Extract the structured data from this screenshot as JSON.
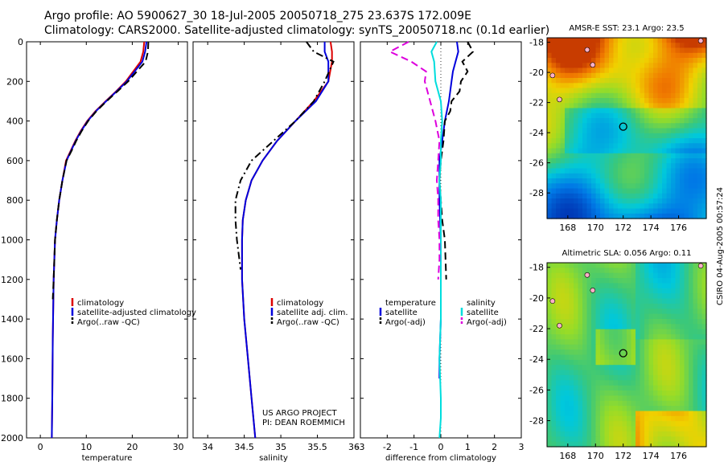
{
  "header": {
    "line1": "Argo profile: AO 5900627_30 18-Jul-2005 20050718_275 23.637S 172.009E",
    "line2": "Climatology: CARS2000. Satellite-adjusted climatology: synTS_20050718.nc (0.1d earlier)"
  },
  "side_label": "CSIRO 04-Aug-2005 00:57:24",
  "colors": {
    "red": "#dd0000",
    "blue": "#0000dd",
    "black": "#000000",
    "cyan": "#00dddd",
    "magenta": "#dd00dd"
  },
  "chart_data": [
    {
      "type": "line",
      "xlabel": "temperature",
      "xlim": [
        -3,
        32
      ],
      "xticks": [
        0,
        10,
        20,
        30
      ],
      "ylim": [
        2000,
        0
      ],
      "yticks": [
        0,
        200,
        400,
        600,
        800,
        1000,
        1200,
        1400,
        1600,
        1800,
        2000
      ],
      "legend": [
        "climatology",
        "satellite-adjusted climatology",
        "Argo(..raw -QC)"
      ],
      "annotation": [],
      "series": [
        {
          "name": "climatology",
          "color": "red",
          "style": "solid",
          "x": [
            22.6,
            22.4,
            21.8,
            20.2,
            18.6,
            16.5,
            14.2,
            12.0,
            10.2,
            8.8,
            7.6,
            6.6,
            5.6,
            4.8,
            4.1,
            3.6,
            3.2,
            2.9,
            2.7,
            2.6,
            2.5
          ],
          "y": [
            0,
            50,
            100,
            150,
            200,
            250,
            300,
            350,
            400,
            450,
            500,
            550,
            600,
            700,
            800,
            900,
            1000,
            1200,
            1500,
            1800,
            2000
          ]
        },
        {
          "name": "satellite-adjusted climatology",
          "color": "blue",
          "style": "solid",
          "x": [
            23.1,
            22.8,
            22.2,
            20.5,
            18.8,
            16.6,
            14.3,
            12.1,
            10.3,
            8.9,
            7.7,
            6.7,
            5.7,
            4.8,
            4.1,
            3.6,
            3.2,
            2.9,
            2.7,
            2.6,
            2.5
          ],
          "y": [
            0,
            50,
            100,
            150,
            200,
            250,
            300,
            350,
            400,
            450,
            500,
            550,
            600,
            700,
            800,
            900,
            1000,
            1200,
            1500,
            1800,
            2000
          ]
        },
        {
          "name": "Argo(..raw -QC)",
          "color": "black",
          "style": "dash",
          "x": [
            23.5,
            23.4,
            22.9,
            21.0,
            19.1,
            16.8,
            14.4,
            12.2,
            10.4,
            9.0,
            7.8,
            6.8,
            5.7,
            4.8,
            4.1,
            3.6,
            3.2,
            2.9,
            2.7
          ],
          "y": [
            0,
            50,
            100,
            150,
            200,
            250,
            300,
            350,
            400,
            450,
            500,
            550,
            600,
            700,
            800,
            900,
            1000,
            1200,
            1300
          ]
        }
      ]
    },
    {
      "type": "line",
      "xlabel": "salinity",
      "xlim": [
        33.8,
        36.0
      ],
      "xticks": [
        34,
        34.5,
        35,
        35.5,
        36
      ],
      "ylim": [
        2000,
        0
      ],
      "yticks": [
        0,
        200,
        400,
        600,
        800,
        1000,
        1200,
        1400,
        1600,
        1800,
        2000
      ],
      "legend": [
        "climatology",
        "satellite adj. clim.",
        "Argo(..raw -QC)"
      ],
      "annotation": [
        "US ARGO PROJECT",
        "PI: DEAN ROEMMICH"
      ],
      "series": [
        {
          "name": "climatology",
          "color": "red",
          "style": "solid",
          "x": [
            35.68,
            35.7,
            35.7,
            35.65,
            35.45,
            35.2,
            34.95,
            34.75,
            34.6,
            34.52,
            34.48,
            34.47,
            34.47,
            34.5,
            34.55,
            34.6,
            34.65
          ],
          "y": [
            0,
            50,
            100,
            200,
            300,
            400,
            500,
            600,
            700,
            800,
            900,
            1000,
            1200,
            1400,
            1600,
            1800,
            2000
          ]
        },
        {
          "name": "satellite adj. clim.",
          "color": "blue",
          "style": "solid",
          "x": [
            35.6,
            35.6,
            35.65,
            35.65,
            35.48,
            35.2,
            34.95,
            34.75,
            34.6,
            34.52,
            34.48,
            34.47,
            34.47,
            34.5,
            34.55,
            34.6,
            34.65
          ],
          "y": [
            0,
            50,
            100,
            200,
            300,
            400,
            500,
            600,
            700,
            800,
            900,
            1000,
            1200,
            1400,
            1600,
            1800,
            2000
          ]
        },
        {
          "name": "Argo(..raw -QC)",
          "color": "black",
          "style": "dashdot",
          "x": [
            35.35,
            35.45,
            35.72,
            35.6,
            35.45,
            35.2,
            34.9,
            34.6,
            34.45,
            34.38,
            34.38,
            34.4,
            34.45
          ],
          "y": [
            0,
            50,
            100,
            200,
            300,
            400,
            500,
            600,
            700,
            800,
            900,
            1000,
            1150
          ]
        }
      ]
    },
    {
      "type": "line",
      "xlabel": "difference from climatology",
      "xlim": [
        -3,
        3
      ],
      "xticks": [
        -3,
        -2,
        -1,
        0,
        1,
        2,
        3
      ],
      "ylim": [
        2000,
        0
      ],
      "yticks": [
        0,
        200,
        400,
        600,
        800,
        1000,
        1200,
        1400,
        1600,
        1800,
        2000
      ],
      "legend_left": [
        "temperature",
        "satellite",
        "Argo(-adj)"
      ],
      "legend_right": [
        "salinity",
        "satellite",
        "Argo(-adj)"
      ],
      "annotation": [],
      "series": [
        {
          "name": "satellite",
          "color": "blue",
          "style": "solid",
          "x": [
            0.6,
            0.65,
            0.55,
            0.45,
            0.4,
            0.3,
            0.15,
            0.05,
            -0.05,
            -0.05,
            -0.05,
            0.0,
            0.0,
            0.0,
            -0.05,
            -0.05
          ],
          "y": [
            0,
            50,
            100,
            150,
            200,
            300,
            400,
            500,
            600,
            700,
            800,
            1000,
            1200,
            1400,
            1600,
            1700
          ]
        },
        {
          "name": "Argo(-adj)",
          "color": "black",
          "style": "dash",
          "x": [
            1.0,
            1.2,
            0.8,
            1.0,
            0.75,
            0.7,
            0.4,
            0.35,
            0.15,
            0.1,
            0.0,
            -0.05,
            0.0,
            0.05,
            0.15,
            0.2
          ],
          "y": [
            0,
            50,
            100,
            150,
            200,
            250,
            300,
            350,
            400,
            500,
            600,
            700,
            800,
            900,
            1000,
            1200
          ]
        },
        {
          "name": "salinity satellite",
          "color": "cyan",
          "style": "solid",
          "x": [
            -0.15,
            -0.35,
            -0.25,
            -0.2,
            0.0,
            0.05,
            0.0,
            0.0,
            -0.05,
            0.0,
            0.0,
            0.0,
            0.0,
            0.0,
            -0.05,
            0.0,
            0.0,
            -0.05
          ],
          "y": [
            0,
            50,
            100,
            200,
            300,
            400,
            500,
            600,
            700,
            800,
            900,
            1000,
            1200,
            1400,
            1600,
            1800,
            1900,
            2000
          ]
        },
        {
          "name": "salinity Argo(-adj)",
          "color": "magenta",
          "style": "dash",
          "x": [
            -1.2,
            -1.9,
            -1.1,
            -0.55,
            -0.6,
            -0.4,
            -0.2,
            -0.05,
            -0.1,
            -0.15,
            -0.1,
            -0.1,
            -0.05,
            -0.05,
            -0.1
          ],
          "y": [
            0,
            50,
            100,
            150,
            200,
            300,
            400,
            500,
            600,
            700,
            800,
            900,
            1000,
            1100,
            1200
          ]
        }
      ]
    },
    {
      "type": "heatmap",
      "title": "AMSR-E SST: 23.1 Argo: 23.5",
      "xlim": [
        166.5,
        178
      ],
      "xticks": [
        168,
        170,
        172,
        174,
        176
      ],
      "ylim": [
        -29.7,
        -17.7
      ],
      "yticks": [
        -18,
        -20,
        -22,
        -24,
        -26,
        -28
      ],
      "marker": {
        "lon": 172.0,
        "lat": -23.6
      }
    },
    {
      "type": "heatmap",
      "title": "Altimetric SLA: 0.056 Argo: 0.11",
      "xlim": [
        166.5,
        178
      ],
      "xticks": [
        168,
        170,
        172,
        174,
        176
      ],
      "ylim": [
        -29.7,
        -17.7
      ],
      "yticks": [
        -18,
        -20,
        -22,
        -24,
        -26,
        -28
      ],
      "marker": {
        "lon": 172.0,
        "lat": -23.6
      }
    }
  ]
}
